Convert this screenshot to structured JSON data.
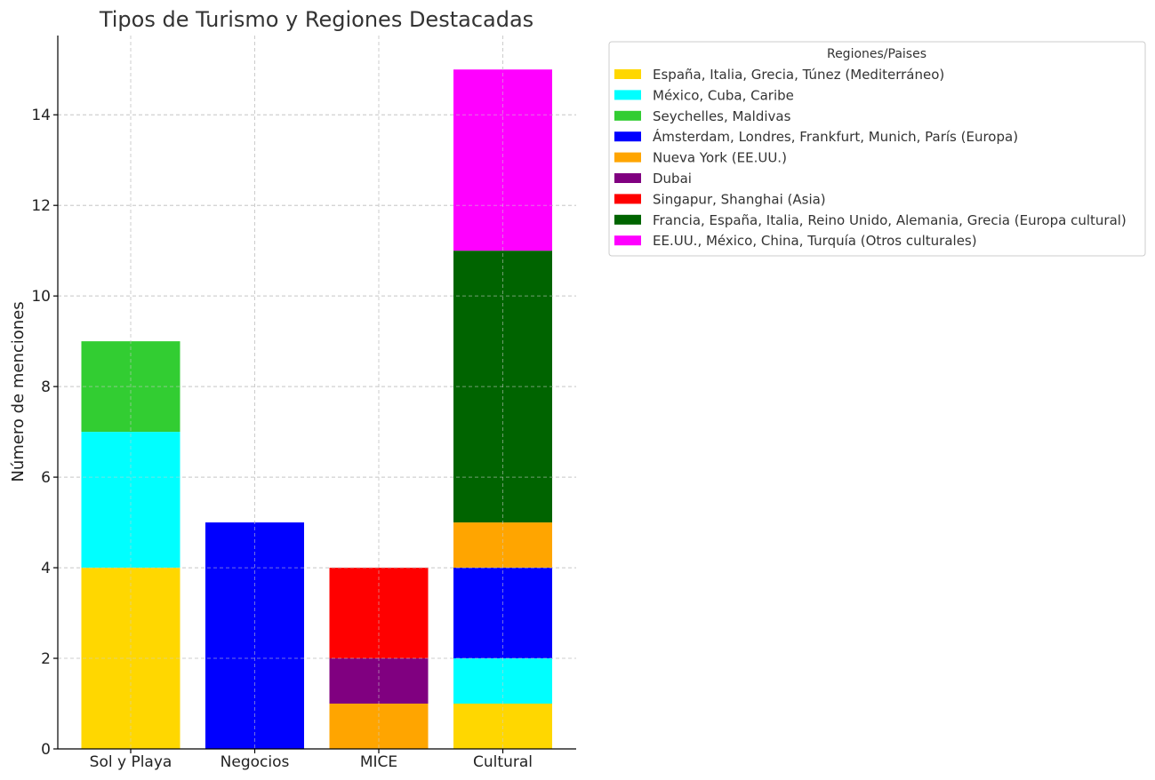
{
  "chart_data": {
    "type": "bar",
    "stacked": true,
    "title": "Tipos de Turismo y Regiones Destacadas",
    "xlabel": "",
    "ylabel": "Número de menciones",
    "ylim": [
      0,
      15.75
    ],
    "yticks": [
      0,
      2,
      4,
      6,
      8,
      10,
      12,
      14
    ],
    "grid": true,
    "categories": [
      "Sol y Playa",
      "Negocios",
      "MICE",
      "Cultural"
    ],
    "legend_title": "Regiones/Paises",
    "legend_position": "upper-right-outside",
    "series": [
      {
        "name": "España, Italia, Grecia, Túnez (Mediterráneo)",
        "color": "#FFD700",
        "values": [
          4,
          0,
          0,
          1
        ]
      },
      {
        "name": "México, Cuba, Caribe",
        "color": "#00FFFF",
        "values": [
          3,
          0,
          0,
          1
        ]
      },
      {
        "name": "Seychelles, Maldivas",
        "color": "#32CD32",
        "values": [
          2,
          0,
          0,
          0
        ]
      },
      {
        "name": "Ámsterdam, Londres, Frankfurt, Munich, París (Europa)",
        "color": "#0000FF",
        "values": [
          0,
          5,
          0,
          2
        ]
      },
      {
        "name": "Nueva York (EE.UU.)",
        "color": "#FFA500",
        "values": [
          0,
          0,
          1,
          1
        ]
      },
      {
        "name": "Dubai",
        "color": "#800080",
        "values": [
          0,
          0,
          1,
          0
        ]
      },
      {
        "name": "Singapur, Shanghai (Asia)",
        "color": "#FF0000",
        "values": [
          0,
          0,
          2,
          0
        ]
      },
      {
        "name": "Francia, España, Italia, Reino Unido, Alemania, Grecia (Europa cultural)",
        "color": "#006400",
        "values": [
          0,
          0,
          0,
          6
        ]
      },
      {
        "name": "EE.UU., México, China, Turquía (Otros culturales)",
        "color": "#FF00FF",
        "values": [
          0,
          0,
          0,
          4
        ]
      }
    ]
  }
}
